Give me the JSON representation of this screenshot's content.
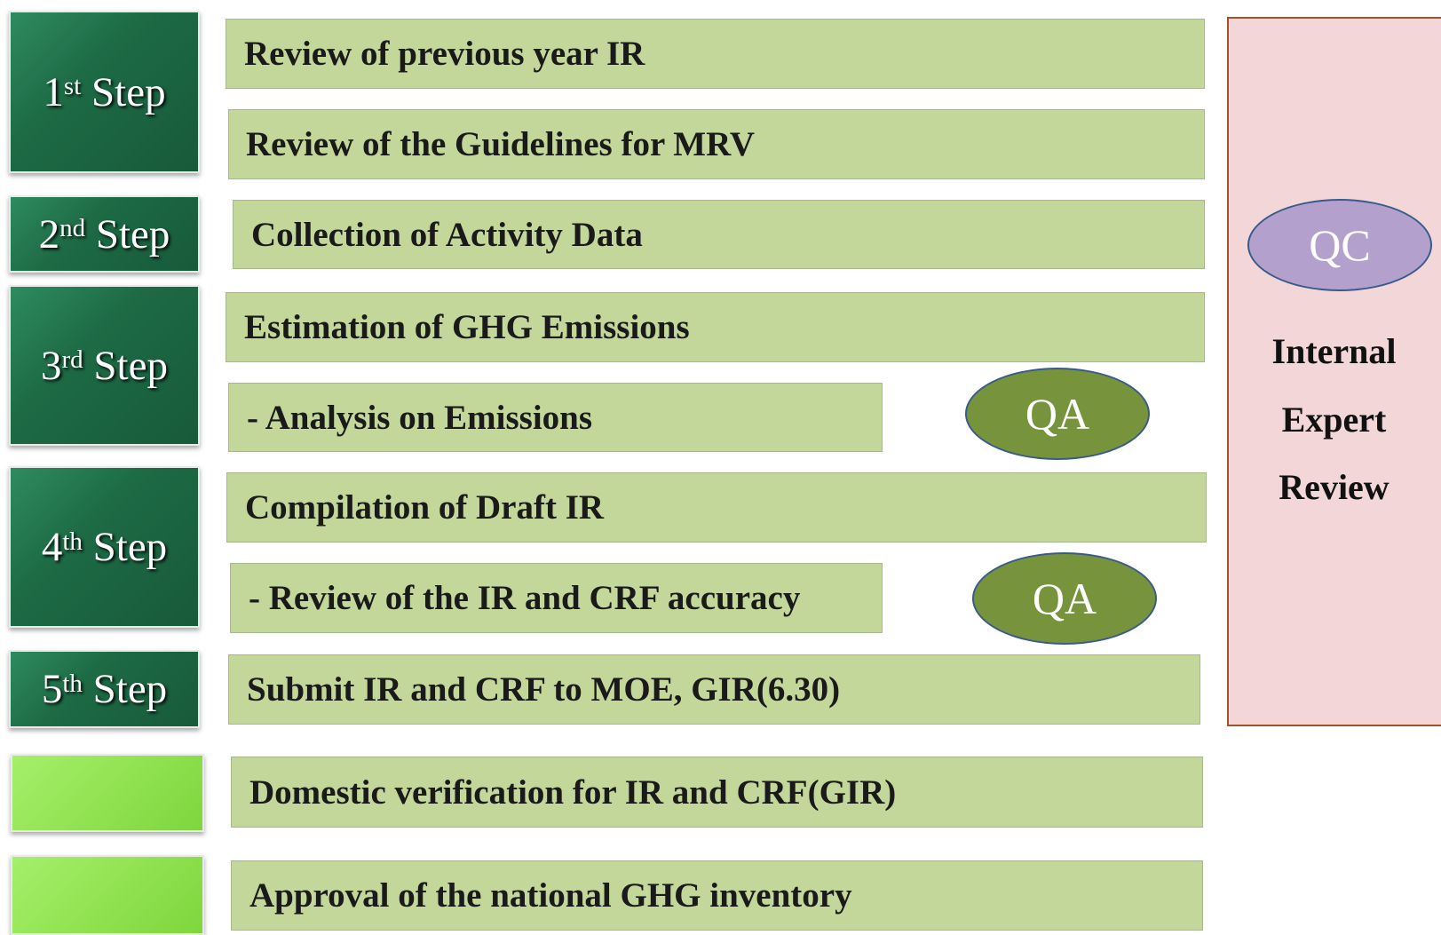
{
  "steps": [
    {
      "number": "1",
      "suffix": "st",
      "word": "Step"
    },
    {
      "number": "2",
      "suffix": "nd",
      "word": "Step"
    },
    {
      "number": "3",
      "suffix": "rd",
      "word": "Step"
    },
    {
      "number": "4",
      "suffix": "th",
      "word": "Step"
    },
    {
      "number": "5",
      "suffix": "th",
      "word": "Step"
    }
  ],
  "tasks": [
    "Review of previous year IR",
    "Review of the Guidelines for MRV",
    "Collection of Activity Data",
    "Estimation of GHG Emissions",
    "- Analysis on Emissions",
    "Compilation of Draft IR",
    "- Review of the IR and CRF accuracy",
    "Submit IR and CRF to MOE, GIR(6.30)",
    "Domestic verification for IR and CRF(GIR)",
    "Approval of the national GHG inventory"
  ],
  "qa": [
    "QA",
    "QA"
  ],
  "qc": "QC",
  "review": [
    "Internal",
    "Expert",
    "Review"
  ]
}
